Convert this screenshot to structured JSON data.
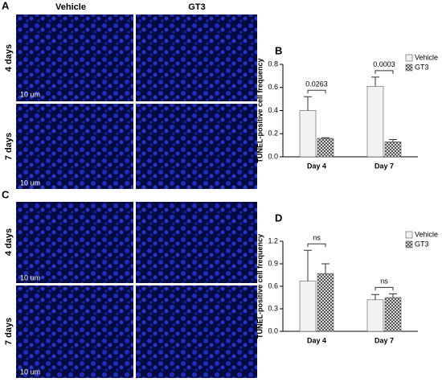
{
  "panels": {
    "A": {
      "label": "A",
      "columns": [
        "Vehicle",
        "GT3"
      ],
      "rows": [
        "4 days",
        "7 days"
      ],
      "scale_bar": "10 um"
    },
    "C": {
      "label": "C",
      "rows": [
        "4 days",
        "7 days"
      ],
      "scale_bar": "10 um"
    },
    "B": {
      "label": "B"
    },
    "D": {
      "label": "D"
    }
  },
  "chart_data": [
    {
      "type": "bar",
      "y_label": "TUNEL-positive cell frequency",
      "categories": [
        "Day 4",
        "Day 7"
      ],
      "series": [
        {
          "name": "Vehicle",
          "color": "#f2f2f2",
          "hatch": false,
          "values": [
            0.4,
            0.61
          ],
          "errors": [
            0.12,
            0.08
          ]
        },
        {
          "name": "GT3",
          "color": "#9a9a9a",
          "hatch": true,
          "values": [
            0.16,
            0.13
          ],
          "errors": [
            0.005,
            0.02
          ]
        }
      ],
      "annotations": [
        "0.0263",
        "0.0003"
      ],
      "ylim": [
        0,
        0.8
      ],
      "yticks": [
        {
          "value": 0,
          "label": "0.0"
        },
        0.2,
        0.4,
        0.6,
        0.8
      ]
    },
    {
      "type": "bar",
      "y_label": "TUNEL-positive cell frequency",
      "categories": [
        "Day 4",
        "Day 7"
      ],
      "series": [
        {
          "name": "Vehicle",
          "color": "#f2f2f2",
          "hatch": false,
          "values": [
            0.67,
            0.42
          ],
          "errors": [
            0.41,
            0.07
          ]
        },
        {
          "name": "GT3",
          "color": "#9a9a9a",
          "hatch": true,
          "values": [
            0.77,
            0.45
          ],
          "errors": [
            0.13,
            0.05
          ]
        }
      ],
      "annotations": [
        "ns",
        "ns"
      ],
      "ylim": [
        0,
        1.2
      ],
      "yticks": [
        {
          "value": 0,
          "label": "0.0"
        },
        0.3,
        0.6,
        0.9,
        1.2
      ]
    }
  ]
}
